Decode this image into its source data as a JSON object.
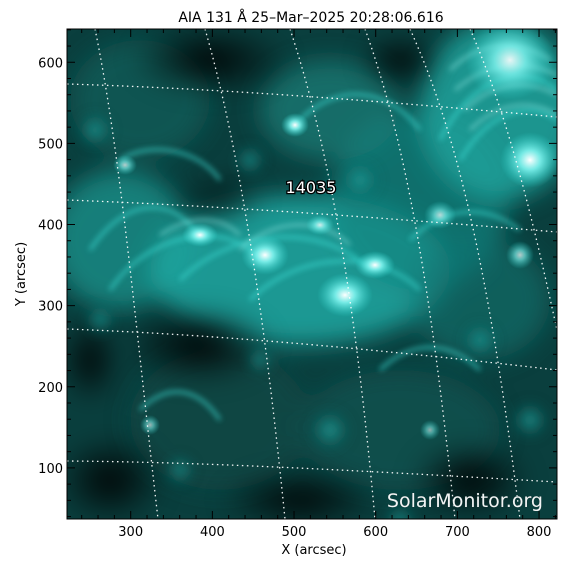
{
  "title": "AIA 131 Å 25–Mar–2025 20:28:06.616",
  "x_axis": {
    "label": "X (arcsec)",
    "range": [
      222,
      822
    ],
    "ticks": [
      300,
      400,
      500,
      600,
      700,
      800
    ],
    "tick_labels": [
      "300",
      "400",
      "500",
      "600",
      "700",
      "800"
    ]
  },
  "y_axis": {
    "label": "Y (arcsec)",
    "range": [
      37,
      641
    ],
    "ticks": [
      100,
      200,
      300,
      400,
      500,
      600
    ],
    "tick_labels": [
      "100",
      "200",
      "300",
      "400",
      "500",
      "600"
    ]
  },
  "region_label": "14035",
  "watermark": "SolarMonitor.org",
  "colors": {
    "image_dark": "#020a0a",
    "image_mid": "#0b4a48",
    "image_bright": "#2fd6cf",
    "image_saturated": "#e8ffff",
    "grid": "#ffffff",
    "frame": "#000000"
  }
}
